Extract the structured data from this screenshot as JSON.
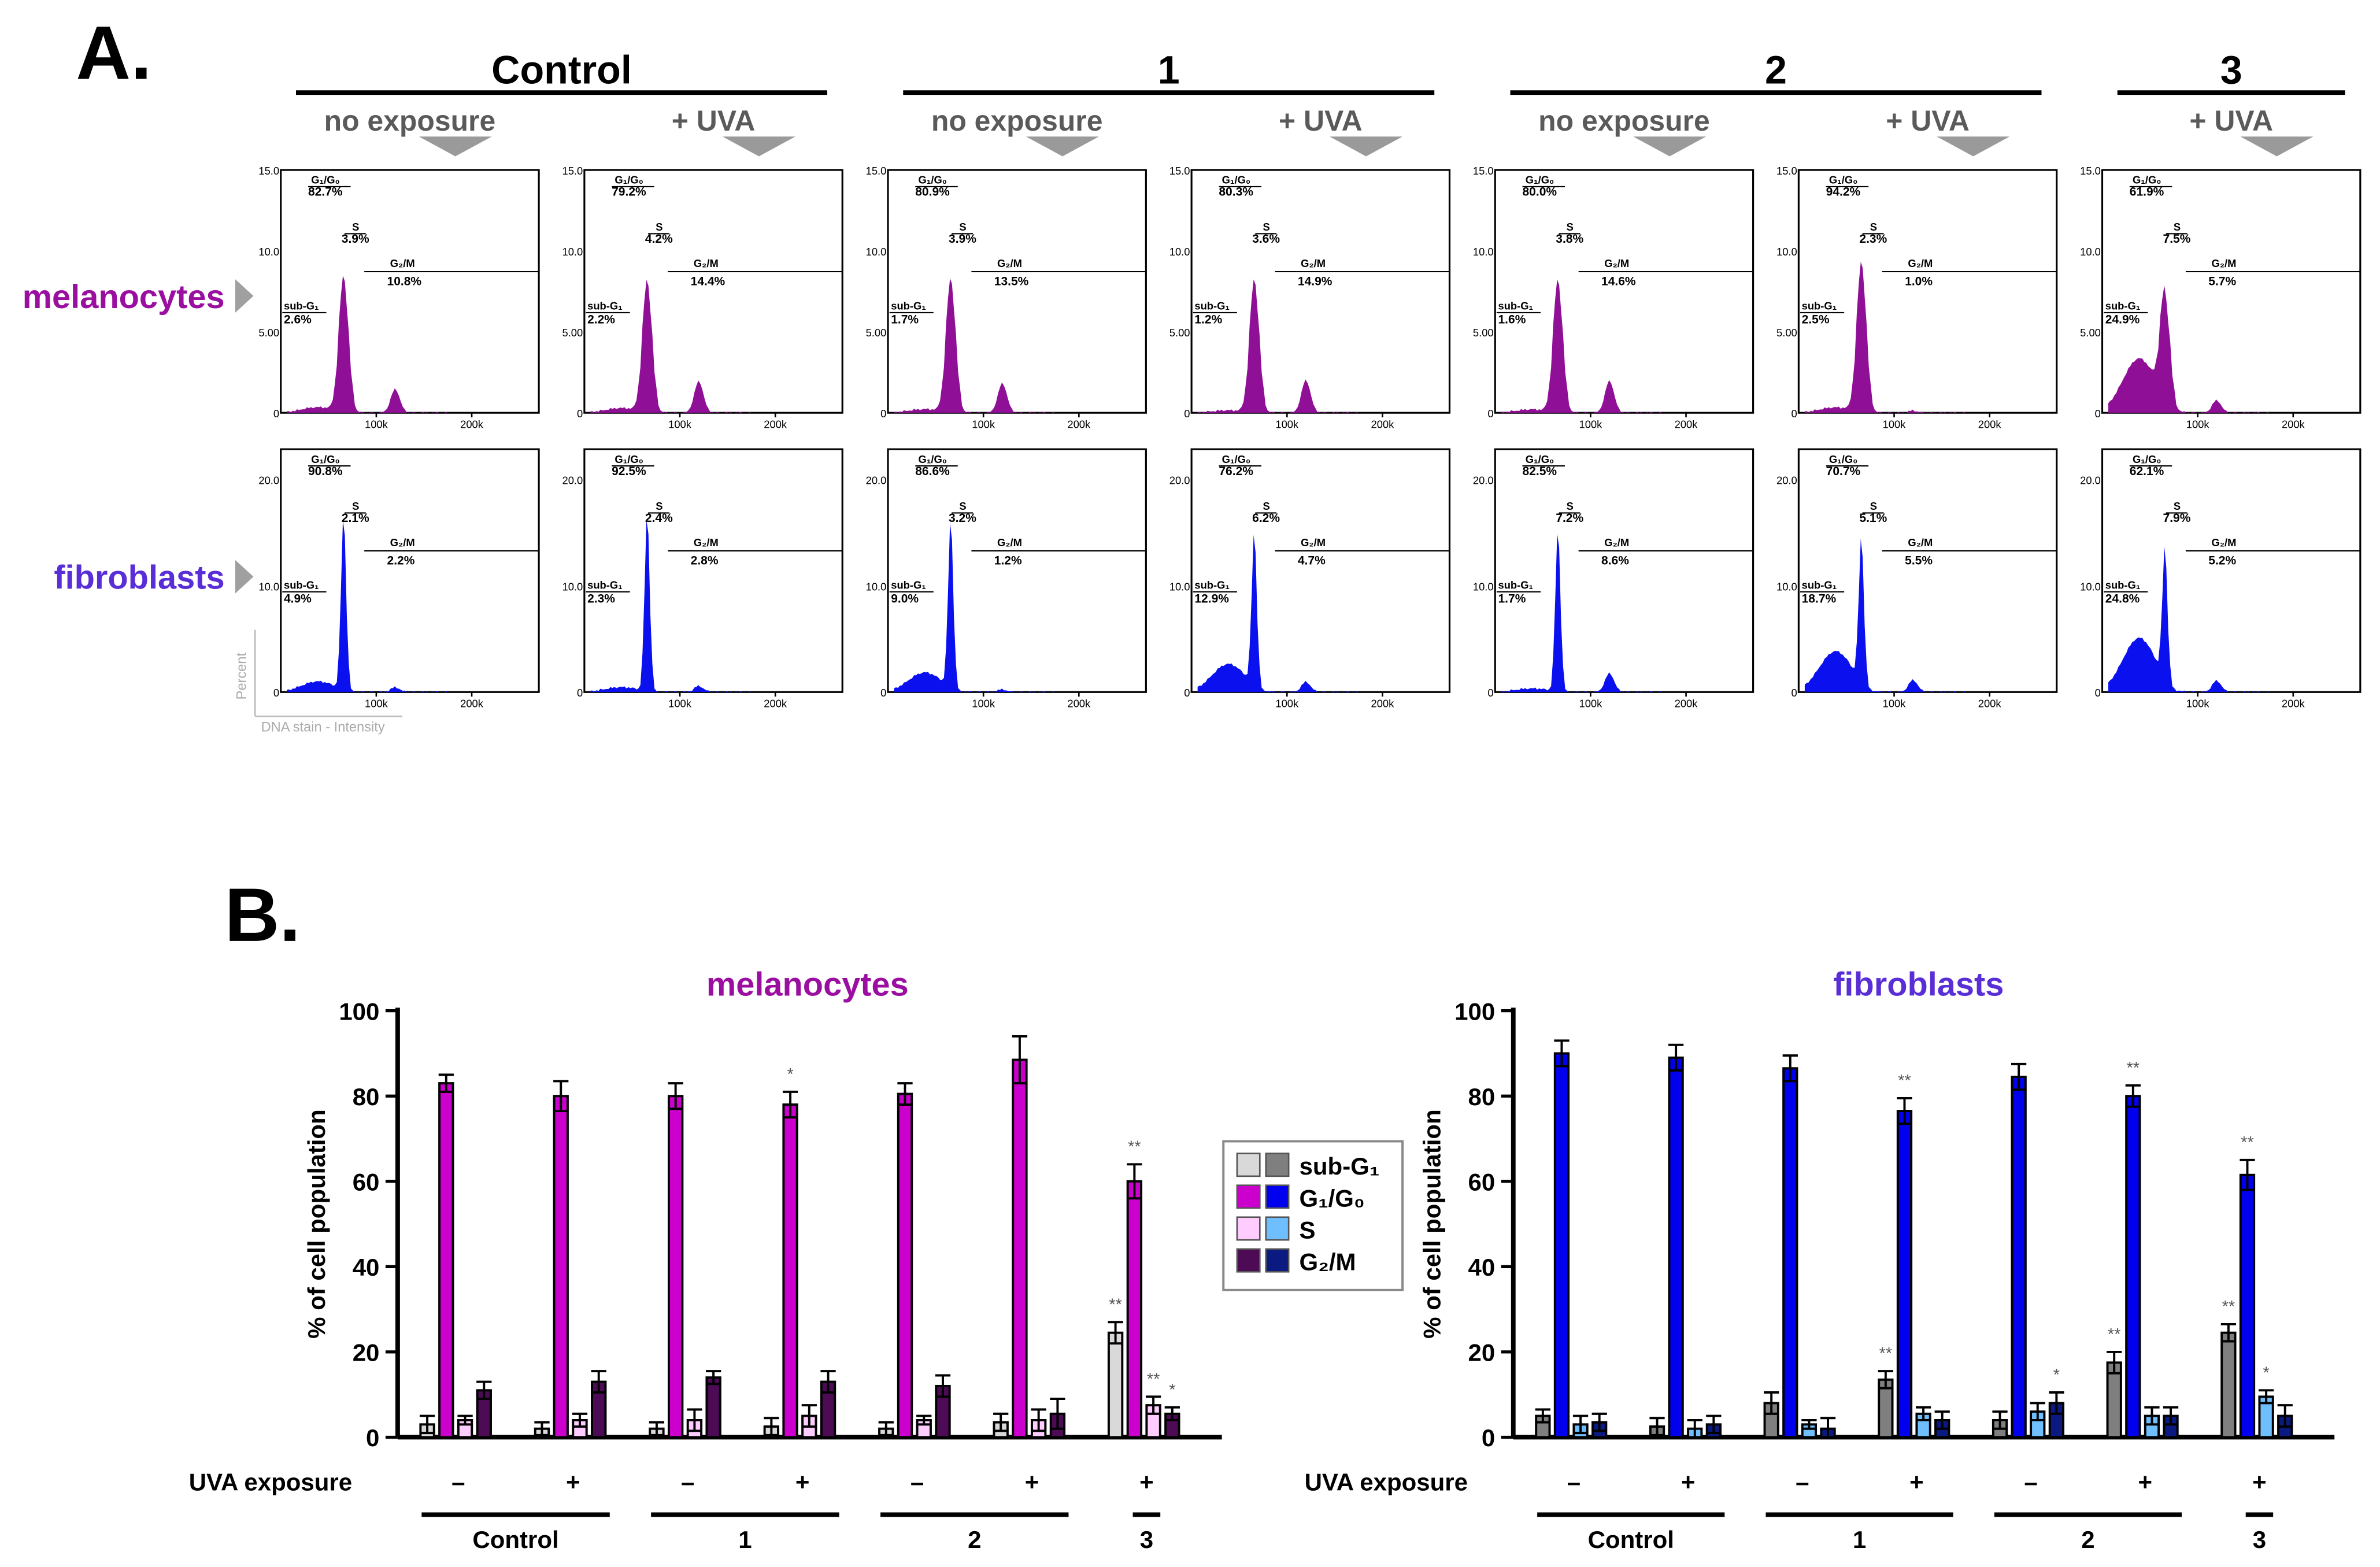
{
  "panel_a": {
    "label": "A.",
    "groups": [
      {
        "name": "Control",
        "subs": [
          "no exposure",
          "+ UVA"
        ]
      },
      {
        "name": "1",
        "subs": [
          "no exposure",
          "+ UVA"
        ]
      },
      {
        "name": "2",
        "subs": [
          "no exposure",
          "+ UVA"
        ]
      },
      {
        "name": "3",
        "subs": [
          "+ UVA"
        ]
      }
    ],
    "rows": [
      {
        "name": "melanocytes",
        "color": "#9a0fa0",
        "fill": "#8f0f96",
        "yticks": [
          "15.0",
          "10.0",
          "5.00",
          "0"
        ],
        "gates": [
          "sub-G₁",
          "G₁/G₀",
          "S",
          "G₂/M"
        ]
      },
      {
        "name": "fibroblasts",
        "color": "#5a2ed6",
        "fill": "#0a10ee",
        "yticks": [
          "20.0",
          "10.0",
          "0"
        ],
        "gates": [
          "sub-G₁",
          "G₁/G₀",
          "S",
          "G₂/M"
        ]
      }
    ],
    "xticks": [
      "100k",
      "200k"
    ],
    "ylabel": "Percent",
    "xlabel": "DNA stain - Intensity",
    "histograms": {
      "melanocytes": [
        {
          "sub": "2.6%",
          "g1": "82.7%",
          "s": "3.9%",
          "g2": "10.8%"
        },
        {
          "sub": "2.2%",
          "g1": "79.2%",
          "s": "4.2%",
          "g2": "14.4%"
        },
        {
          "sub": "1.7%",
          "g1": "80.9%",
          "s": "3.9%",
          "g2": "13.5%"
        },
        {
          "sub": "1.2%",
          "g1": "80.3%",
          "s": "3.6%",
          "g2": "14.9%"
        },
        {
          "sub": "1.6%",
          "g1": "80.0%",
          "s": "3.8%",
          "g2": "14.6%"
        },
        {
          "sub": "2.5%",
          "g1": "94.2%",
          "s": "2.3%",
          "g2": "1.0%"
        },
        {
          "sub": "24.9%",
          "g1": "61.9%",
          "s": "7.5%",
          "g2": "5.7%"
        }
      ],
      "fibroblasts": [
        {
          "sub": "4.9%",
          "g1": "90.8%",
          "s": "2.1%",
          "g2": "2.2%"
        },
        {
          "sub": "2.3%",
          "g1": "92.5%",
          "s": "2.4%",
          "g2": "2.8%"
        },
        {
          "sub": "9.0%",
          "g1": "86.6%",
          "s": "3.2%",
          "g2": "1.2%"
        },
        {
          "sub": "12.9%",
          "g1": "76.2%",
          "s": "6.2%",
          "g2": "4.7%"
        },
        {
          "sub": "1.7%",
          "g1": "82.5%",
          "s": "7.2%",
          "g2": "8.6%"
        },
        {
          "sub": "18.7%",
          "g1": "70.7%",
          "s": "5.1%",
          "g2": "5.5%"
        },
        {
          "sub": "24.8%",
          "g1": "62.1%",
          "s": "7.9%",
          "g2": "5.2%"
        }
      ]
    }
  },
  "panel_b": {
    "label": "B.",
    "legend": [
      "sub-G₁",
      "G₁/G₀",
      "S",
      "G₂/M"
    ],
    "uva_label": "UVA exposure"
  },
  "chart_data": [
    {
      "type": "bar",
      "title": "melanocytes",
      "ylabel": "% of cell population",
      "xlabel": "",
      "ylim": [
        0,
        100
      ],
      "yticks": [
        0,
        20,
        40,
        60,
        80,
        100
      ],
      "categories": [
        "Control –",
        "Control +",
        "1 –",
        "1 +",
        "2 –",
        "2 +",
        "3 +"
      ],
      "uva": [
        "–",
        "+",
        "–",
        "+",
        "–",
        "+",
        "+"
      ],
      "group_labels": [
        "Control",
        "1",
        "2",
        "3"
      ],
      "title_color": "#9a0fa0",
      "series": [
        {
          "name": "sub-G₁",
          "color": "#d9d9d9",
          "values": [
            3,
            2,
            2,
            2.5,
            2,
            3.5,
            24.5
          ],
          "errors": [
            2,
            1.5,
            1.5,
            2,
            1.5,
            2,
            2.5
          ]
        },
        {
          "name": "G₁/G₀",
          "color": "#cc00cc",
          "values": [
            83,
            80,
            80,
            78,
            80.5,
            88.5,
            60
          ],
          "errors": [
            2,
            3.5,
            3,
            3,
            2.5,
            5.5,
            4
          ]
        },
        {
          "name": "S",
          "color": "#ffccff",
          "values": [
            4,
            4,
            4,
            5,
            4,
            4,
            7.5
          ],
          "errors": [
            1,
            1.5,
            2.5,
            2.5,
            1,
            2.5,
            2
          ]
        },
        {
          "name": "G₂/M",
          "color": "#4d0a55",
          "values": [
            11,
            13,
            14,
            13,
            12,
            5.5,
            5.5
          ],
          "errors": [
            2,
            2.5,
            1.5,
            2.5,
            2.5,
            3.5,
            1.5
          ]
        }
      ],
      "annotations": [
        {
          "series": 1,
          "index": 3,
          "text": "*"
        },
        {
          "series": 0,
          "index": 6,
          "text": "**"
        },
        {
          "series": 1,
          "index": 6,
          "text": "**"
        },
        {
          "series": 2,
          "index": 6,
          "text": "**"
        },
        {
          "series": 3,
          "index": 6,
          "text": "*"
        }
      ]
    },
    {
      "type": "bar",
      "title": "fibroblasts",
      "ylabel": "% of cell population",
      "xlabel": "",
      "ylim": [
        0,
        100
      ],
      "yticks": [
        0,
        20,
        40,
        60,
        80,
        100
      ],
      "categories": [
        "Control –",
        "Control +",
        "1 –",
        "1 +",
        "2 –",
        "2 +",
        "3 +"
      ],
      "uva": [
        "–",
        "+",
        "–",
        "+",
        "–",
        "+",
        "+"
      ],
      "group_labels": [
        "Control",
        "1",
        "2",
        "3"
      ],
      "title_color": "#5a2ed6",
      "series": [
        {
          "name": "sub-G₁",
          "color": "#7f7f7f",
          "values": [
            5,
            2.5,
            8,
            13.5,
            4,
            17.5,
            24.5
          ],
          "errors": [
            1.5,
            2,
            2.5,
            2,
            2,
            2.5,
            2
          ]
        },
        {
          "name": "G₁/G₀",
          "color": "#0000ee",
          "values": [
            90,
            89,
            86.5,
            76.5,
            84.5,
            80,
            61.5
          ],
          "errors": [
            3,
            3,
            3,
            3,
            3,
            2.5,
            3.5
          ]
        },
        {
          "name": "S",
          "color": "#6fbfff",
          "values": [
            3,
            2,
            3,
            5.5,
            6,
            5,
            9.5
          ],
          "errors": [
            2,
            2,
            1,
            1.5,
            2,
            2,
            1.5
          ]
        },
        {
          "name": "G₂/M",
          "color": "#0a1a80",
          "values": [
            3.5,
            3,
            2,
            4,
            8,
            5,
            5
          ],
          "errors": [
            2,
            2,
            2.5,
            2,
            2.5,
            2,
            2.5
          ]
        }
      ],
      "annotations": [
        {
          "series": 0,
          "index": 3,
          "text": "**"
        },
        {
          "series": 1,
          "index": 3,
          "text": "**"
        },
        {
          "series": 3,
          "index": 4,
          "text": "*"
        },
        {
          "series": 0,
          "index": 5,
          "text": "**"
        },
        {
          "series": 1,
          "index": 5,
          "text": "**"
        },
        {
          "series": 0,
          "index": 6,
          "text": "**"
        },
        {
          "series": 1,
          "index": 6,
          "text": "**"
        },
        {
          "series": 2,
          "index": 6,
          "text": "*"
        }
      ]
    }
  ]
}
